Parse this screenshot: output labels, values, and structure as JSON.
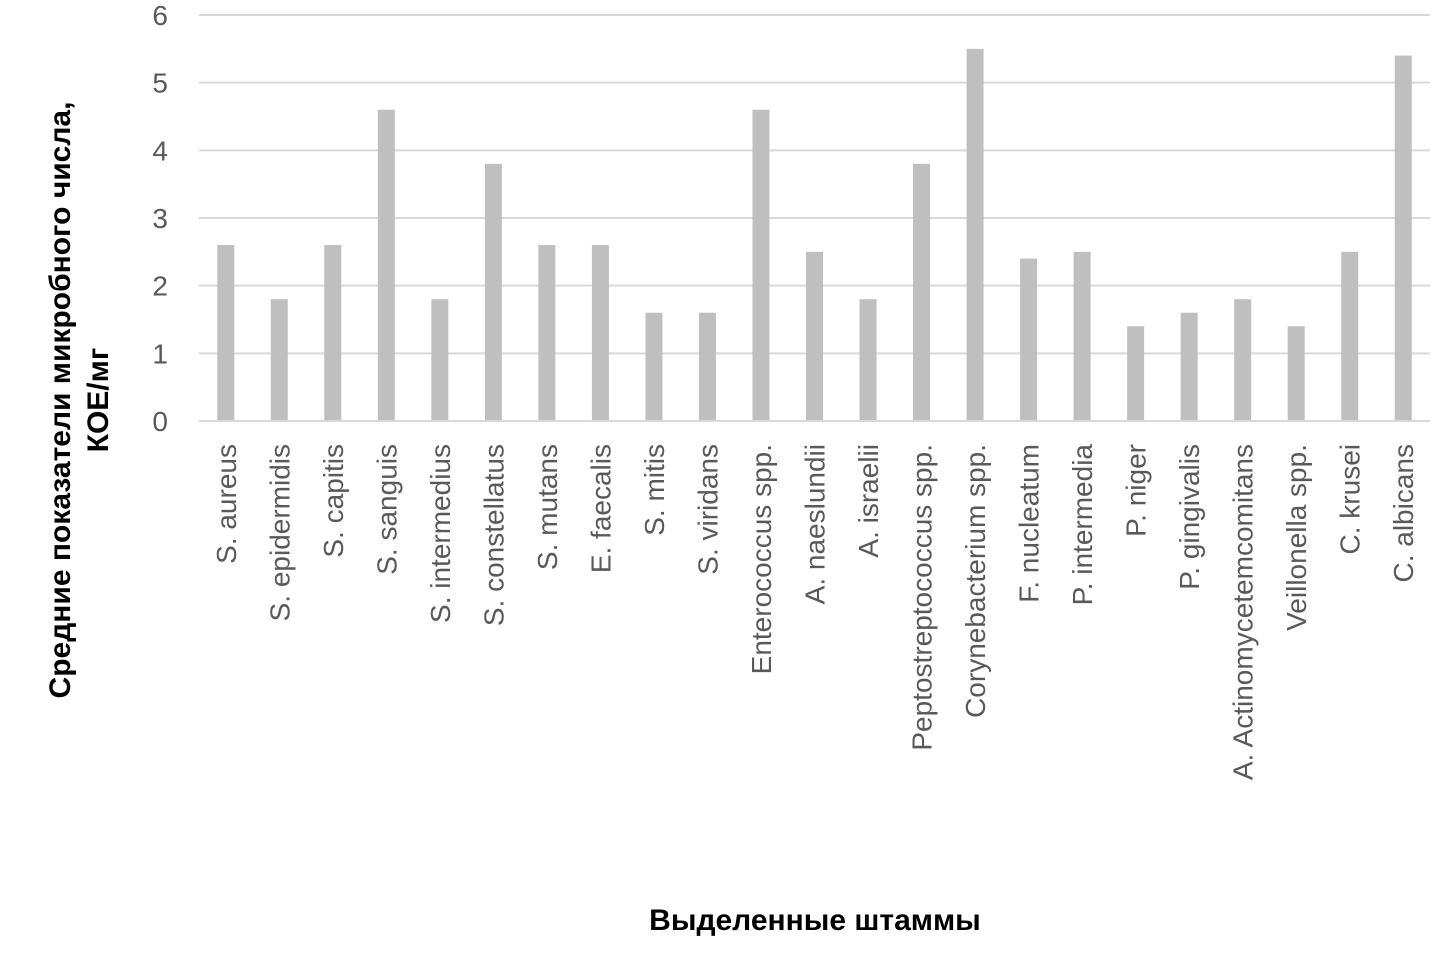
{
  "chart_data": {
    "type": "bar",
    "categories": [
      "S. aureus",
      "S. epidermidis",
      "S. capitis",
      "S. sanguis",
      "S. intermedius",
      "S. constellatus",
      "S. mutans",
      "E. faecalis",
      "S. mitis",
      "S. viridans",
      "Enterococcus spp.",
      "A. naeslundii",
      "A. israelii",
      "Peptostreptococcus spp.",
      "Corynebacterium spp.",
      "F. nucleatum",
      "P. intermedia",
      "P. niger",
      "P. gingivalis",
      "A. Actinomycetemcomitans",
      "Veillonella spp.",
      "C. krusei",
      "C. albicans"
    ],
    "values": [
      2.6,
      1.8,
      2.6,
      4.6,
      1.8,
      3.8,
      2.6,
      2.6,
      1.6,
      1.6,
      4.6,
      2.5,
      1.8,
      3.8,
      5.5,
      2.4,
      2.5,
      1.4,
      1.6,
      1.8,
      1.4,
      2.5,
      5.4
    ],
    "title": "",
    "xlabel": "Выделенные штаммы",
    "ylabel_lines": [
      "Средние показатели микробного числа,",
      "КОЕ/мг"
    ],
    "ylim": [
      0,
      6
    ],
    "yticks": [
      0,
      1,
      2,
      3,
      4,
      5,
      6
    ],
    "grid": true,
    "legend": "none",
    "colors": {
      "bar": "#bfbfbf",
      "grid": "#d9d9d9",
      "tick_text": "#595959",
      "label_text": "#000000"
    }
  }
}
